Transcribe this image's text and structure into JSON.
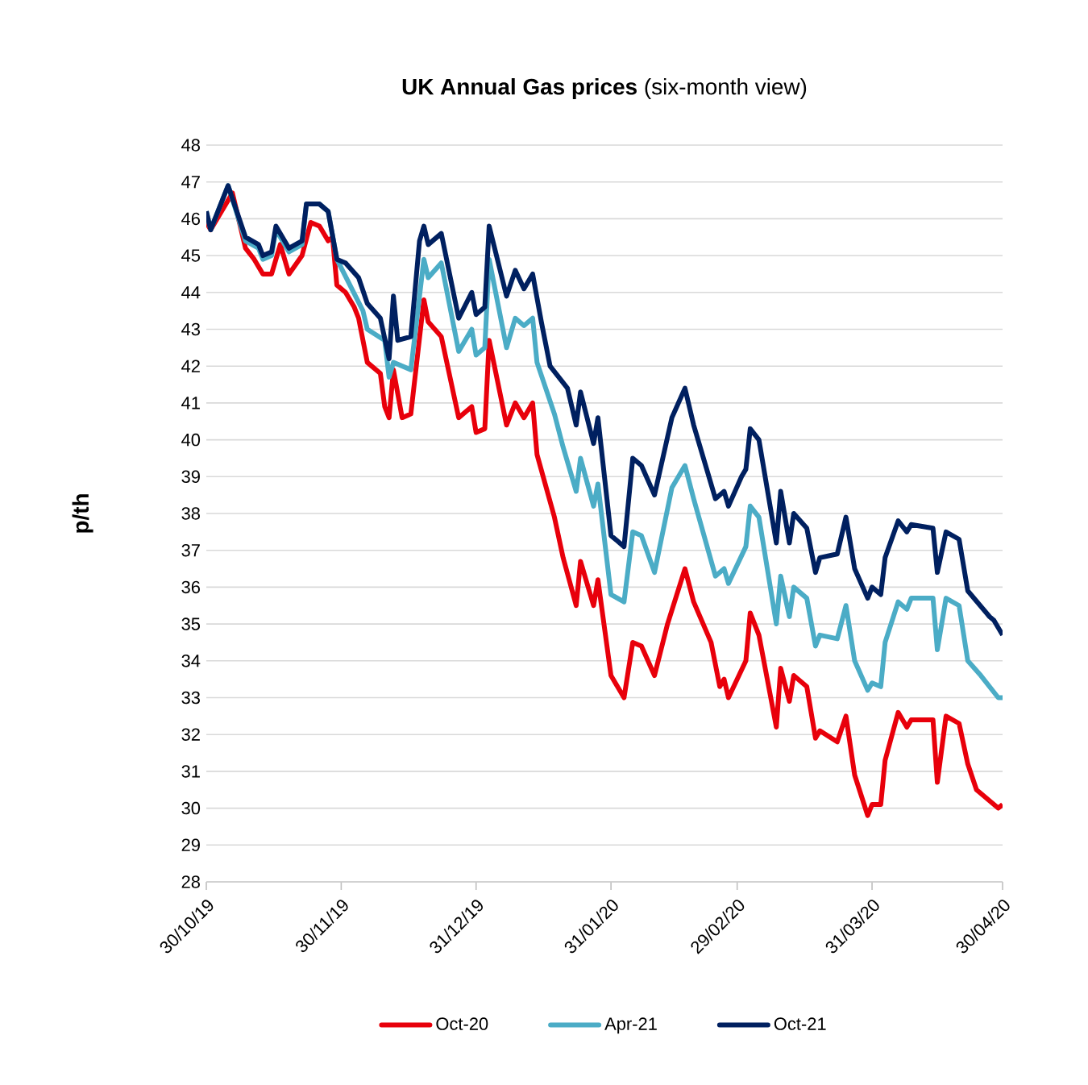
{
  "chart_data": {
    "type": "line",
    "title": "**UK Annual Gas prices** (six-month view)",
    "ylabel": "p/th",
    "xlim": [
      "2019-10-30",
      "2020-04-30"
    ],
    "xticks": [
      {
        "value": "2019-10-30",
        "label": "30/10/19"
      },
      {
        "value": "2019-11-30",
        "label": "30/11/19"
      },
      {
        "value": "2019-12-31",
        "label": "31/12/19"
      },
      {
        "value": "2020-01-31",
        "label": "31/01/20"
      },
      {
        "value": "2020-02-29",
        "label": "29/02/20"
      },
      {
        "value": "2020-03-31",
        "label": "31/03/20"
      },
      {
        "value": "2020-04-30",
        "label": "30/04/20"
      }
    ],
    "ylim": [
      28,
      48
    ],
    "yticks": [
      28,
      29,
      30,
      31,
      32,
      33,
      34,
      35,
      36,
      37,
      38,
      39,
      40,
      41,
      42,
      43,
      44,
      45,
      46,
      47,
      48
    ],
    "grid": "y",
    "legend": "bottom",
    "series": [
      {
        "name": "Oct-20",
        "color": "#e8000b",
        "x": [
          "2019-10-30",
          "2019-10-31",
          "2019-11-05",
          "2019-11-08",
          "2019-11-10",
          "2019-11-12",
          "2019-11-14",
          "2019-11-16",
          "2019-11-18",
          "2019-11-21",
          "2019-11-23",
          "2019-11-25",
          "2019-11-27",
          "2019-11-28",
          "2019-11-29",
          "2019-12-01",
          "2019-12-03",
          "2019-12-04",
          "2019-12-06",
          "2019-12-09",
          "2019-12-10",
          "2019-12-11",
          "2019-12-12",
          "2019-12-14",
          "2019-12-16",
          "2019-12-19",
          "2019-12-20",
          "2019-12-23",
          "2019-12-27",
          "2019-12-30",
          "2019-12-31",
          "2020-01-02",
          "2020-01-03",
          "2020-01-07",
          "2020-01-09",
          "2020-01-11",
          "2020-01-13",
          "2020-01-14",
          "2020-01-18",
          "2020-01-20",
          "2020-01-23",
          "2020-01-24",
          "2020-01-27",
          "2020-01-28",
          "2020-01-31",
          "2020-02-03",
          "2020-02-05",
          "2020-02-07",
          "2020-02-10",
          "2020-02-13",
          "2020-02-17",
          "2020-02-19",
          "2020-02-23",
          "2020-02-25",
          "2020-02-26",
          "2020-02-27",
          "2020-03-02",
          "2020-03-03",
          "2020-03-05",
          "2020-03-09",
          "2020-03-10",
          "2020-03-12",
          "2020-03-13",
          "2020-03-16",
          "2020-03-18",
          "2020-03-19",
          "2020-03-23",
          "2020-03-25",
          "2020-03-27",
          "2020-03-30",
          "2020-03-31",
          "2020-04-02",
          "2020-04-03",
          "2020-04-06",
          "2020-04-08",
          "2020-04-09",
          "2020-04-14",
          "2020-04-15",
          "2020-04-17",
          "2020-04-20",
          "2020-04-22",
          "2020-04-24",
          "2020-04-26",
          "2020-04-29",
          "2020-04-30"
        ],
        "values": [
          45.9,
          45.7,
          46.7,
          45.2,
          44.9,
          44.5,
          44.5,
          45.3,
          44.5,
          45.0,
          45.9,
          45.8,
          45.4,
          45.5,
          44.2,
          44.0,
          43.6,
          43.3,
          42.1,
          41.8,
          40.9,
          40.6,
          41.9,
          40.6,
          40.7,
          43.8,
          43.2,
          42.8,
          40.6,
          40.9,
          40.2,
          40.3,
          42.7,
          40.4,
          41.0,
          40.6,
          41.0,
          39.6,
          37.9,
          36.8,
          35.5,
          36.7,
          35.5,
          36.2,
          33.6,
          33.0,
          34.5,
          34.4,
          33.6,
          35.0,
          36.5,
          35.6,
          34.5,
          33.3,
          33.5,
          33.0,
          34.0,
          35.3,
          34.7,
          32.2,
          33.8,
          32.9,
          33.6,
          33.3,
          31.9,
          32.1,
          31.8,
          32.5,
          30.9,
          29.8,
          30.1,
          30.1,
          31.3,
          32.6,
          32.2,
          32.4,
          32.4,
          30.7,
          32.5,
          32.3,
          31.2,
          30.5,
          30.3,
          30.0,
          30.1
        ]
      },
      {
        "name": "Apr-21",
        "color": "#4bacc6",
        "x": [
          "2019-10-30",
          "2019-10-31",
          "2019-11-04",
          "2019-11-08",
          "2019-11-11",
          "2019-11-12",
          "2019-11-14",
          "2019-11-15",
          "2019-11-18",
          "2019-11-21",
          "2019-11-22",
          "2019-11-25",
          "2019-11-27",
          "2019-11-29",
          "2019-12-05",
          "2019-12-06",
          "2019-12-10",
          "2019-12-11",
          "2019-12-12",
          "2019-12-16",
          "2019-12-19",
          "2019-12-20",
          "2019-12-23",
          "2019-12-27",
          "2019-12-30",
          "2019-12-31",
          "2020-01-02",
          "2020-01-03",
          "2020-01-07",
          "2020-01-09",
          "2020-01-11",
          "2020-01-13",
          "2020-01-14",
          "2020-01-18",
          "2020-01-20",
          "2020-01-23",
          "2020-01-24",
          "2020-01-27",
          "2020-01-28",
          "2020-01-31",
          "2020-02-03",
          "2020-02-05",
          "2020-02-07",
          "2020-02-10",
          "2020-02-14",
          "2020-02-17",
          "2020-02-19",
          "2020-02-24",
          "2020-02-26",
          "2020-02-27",
          "2020-03-02",
          "2020-03-03",
          "2020-03-05",
          "2020-03-09",
          "2020-03-10",
          "2020-03-12",
          "2020-03-13",
          "2020-03-16",
          "2020-03-18",
          "2020-03-19",
          "2020-03-23",
          "2020-03-25",
          "2020-03-27",
          "2020-03-30",
          "2020-03-31",
          "2020-04-02",
          "2020-04-03",
          "2020-04-06",
          "2020-04-08",
          "2020-04-09",
          "2020-04-14",
          "2020-04-15",
          "2020-04-17",
          "2020-04-20",
          "2020-04-22",
          "2020-04-25",
          "2020-04-27",
          "2020-04-29",
          "2020-04-30"
        ],
        "values": [
          46.2,
          45.7,
          46.9,
          45.4,
          45.2,
          44.9,
          45.0,
          45.7,
          45.1,
          45.3,
          46.4,
          46.4,
          46.2,
          44.9,
          43.5,
          43.0,
          42.7,
          41.7,
          42.1,
          41.9,
          44.9,
          44.4,
          44.8,
          42.4,
          43.0,
          42.3,
          42.5,
          44.9,
          42.5,
          43.3,
          43.1,
          43.3,
          42.1,
          40.7,
          39.8,
          38.6,
          39.5,
          38.2,
          38.8,
          35.8,
          35.6,
          37.5,
          37.4,
          36.4,
          38.7,
          39.3,
          38.4,
          36.3,
          36.5,
          36.1,
          37.1,
          38.2,
          37.9,
          35.0,
          36.3,
          35.2,
          36.0,
          35.7,
          34.4,
          34.7,
          34.6,
          35.5,
          34.0,
          33.2,
          33.4,
          33.3,
          34.5,
          35.6,
          35.4,
          35.7,
          35.7,
          34.3,
          35.7,
          35.5,
          34.0,
          33.6,
          33.3,
          33.0,
          33.0
        ]
      },
      {
        "name": "Oct-21",
        "color": "#002060",
        "x": [
          "2019-10-30",
          "2019-10-31",
          "2019-11-04",
          "2019-11-08",
          "2019-11-11",
          "2019-11-12",
          "2019-11-14",
          "2019-11-15",
          "2019-11-18",
          "2019-11-21",
          "2019-11-22",
          "2019-11-25",
          "2019-11-27",
          "2019-11-29",
          "2019-12-01",
          "2019-12-04",
          "2019-12-06",
          "2019-12-09",
          "2019-12-11",
          "2019-12-12",
          "2019-12-13",
          "2019-12-16",
          "2019-12-18",
          "2019-12-19",
          "2019-12-20",
          "2019-12-23",
          "2019-12-27",
          "2019-12-30",
          "2019-12-31",
          "2020-01-02",
          "2020-01-03",
          "2020-01-07",
          "2020-01-09",
          "2020-01-11",
          "2020-01-13",
          "2020-01-15",
          "2020-01-17",
          "2020-01-21",
          "2020-01-23",
          "2020-01-24",
          "2020-01-27",
          "2020-01-28",
          "2020-01-31",
          "2020-02-03",
          "2020-02-05",
          "2020-02-07",
          "2020-02-10",
          "2020-02-14",
          "2020-02-17",
          "2020-02-19",
          "2020-02-24",
          "2020-02-26",
          "2020-02-27",
          "2020-03-01",
          "2020-03-02",
          "2020-03-03",
          "2020-03-05",
          "2020-03-09",
          "2020-03-10",
          "2020-03-12",
          "2020-03-13",
          "2020-03-16",
          "2020-03-18",
          "2020-03-19",
          "2020-03-23",
          "2020-03-25",
          "2020-03-27",
          "2020-03-30",
          "2020-03-31",
          "2020-04-02",
          "2020-04-03",
          "2020-04-06",
          "2020-04-08",
          "2020-04-09",
          "2020-04-14",
          "2020-04-15",
          "2020-04-17",
          "2020-04-20",
          "2020-04-22",
          "2020-04-27",
          "2020-04-28",
          "2020-04-30"
        ],
        "values": [
          46.2,
          45.7,
          46.9,
          45.5,
          45.3,
          45.0,
          45.1,
          45.8,
          45.2,
          45.4,
          46.4,
          46.4,
          46.2,
          44.9,
          44.8,
          44.4,
          43.7,
          43.3,
          42.2,
          43.9,
          42.7,
          42.8,
          45.4,
          45.8,
          45.3,
          45.6,
          43.3,
          44.0,
          43.4,
          43.6,
          45.8,
          43.9,
          44.6,
          44.1,
          44.5,
          43.2,
          42.0,
          41.4,
          40.4,
          41.3,
          39.9,
          40.6,
          37.4,
          37.1,
          39.5,
          39.3,
          38.5,
          40.6,
          41.4,
          40.4,
          38.4,
          38.6,
          38.2,
          39.0,
          39.2,
          40.3,
          40.0,
          37.2,
          38.6,
          37.2,
          38.0,
          37.6,
          36.4,
          36.8,
          36.9,
          37.9,
          36.5,
          35.7,
          36.0,
          35.8,
          36.8,
          37.8,
          37.5,
          37.7,
          37.6,
          36.4,
          37.5,
          37.3,
          35.9,
          35.2,
          35.1,
          34.7
        ]
      }
    ]
  }
}
